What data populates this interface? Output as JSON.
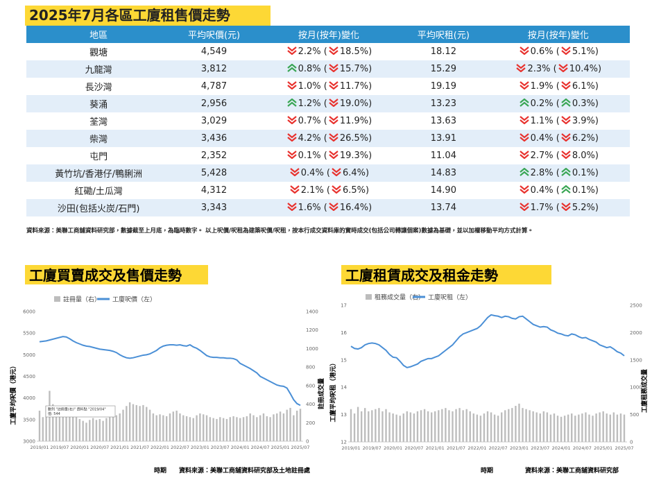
{
  "header": {
    "title": "2025年7月各區工廈租售價走勢"
  },
  "table": {
    "columns": [
      "地區",
      "平均呎價(元)",
      "按月(按年)變化",
      "平均呎租(元)",
      "按月(按年)變化"
    ],
    "rows": [
      [
        "觀塘",
        "4,549",
        {
          "arrows": [
            "down",
            "down"
          ],
          "texts": [
            "2.2% (",
            "18.5%)"
          ]
        },
        "18.12",
        {
          "arrows": [
            "down",
            "down"
          ],
          "texts": [
            "0.6% (",
            "5.1%)"
          ]
        }
      ],
      [
        "九龍灣",
        "3,812",
        {
          "arrows": [
            "up",
            "down"
          ],
          "texts": [
            "0.8% (",
            "15.7%)"
          ]
        },
        "15.29",
        {
          "arrows": [
            "down",
            "down"
          ],
          "texts": [
            "2.3% (",
            "10.4%)"
          ]
        }
      ],
      [
        "長沙灣",
        "4,787",
        {
          "arrows": [
            "down",
            "down"
          ],
          "texts": [
            "1.0% (",
            "11.7%)"
          ]
        },
        "19.19",
        {
          "arrows": [
            "down",
            "down"
          ],
          "texts": [
            "1.9% (",
            "6.1%)"
          ]
        }
      ],
      [
        "葵涌",
        "2,956",
        {
          "arrows": [
            "up",
            "down"
          ],
          "texts": [
            "1.2% (",
            "19.0%)"
          ]
        },
        "13.23",
        {
          "arrows": [
            "up",
            "up"
          ],
          "texts": [
            "0.2% (",
            "0.3%)"
          ]
        }
      ],
      [
        "荃灣",
        "3,029",
        {
          "arrows": [
            "down",
            "down"
          ],
          "texts": [
            "0.7% (",
            "11.9%)"
          ]
        },
        "13.63",
        {
          "arrows": [
            "down",
            "down"
          ],
          "texts": [
            "1.1% (",
            "3.9%)"
          ]
        }
      ],
      [
        "柴灣",
        "3,436",
        {
          "arrows": [
            "down",
            "down"
          ],
          "texts": [
            "4.2% (",
            "26.5%)"
          ]
        },
        "13.91",
        {
          "arrows": [
            "down",
            "down"
          ],
          "texts": [
            "0.4% (",
            "6.2%)"
          ]
        }
      ],
      [
        "屯門",
        "2,352",
        {
          "arrows": [
            "down",
            "down"
          ],
          "texts": [
            "0.1% (",
            "19.3%)"
          ]
        },
        "11.04",
        {
          "arrows": [
            "down",
            "down"
          ],
          "texts": [
            "2.7% (",
            "8.0%)"
          ]
        }
      ],
      [
        "黃竹坑/香港仔/鴨脷洲",
        "5,428",
        {
          "arrows": [
            "down",
            "down"
          ],
          "texts": [
            "0.4% (",
            "6.4%)"
          ]
        },
        "14.83",
        {
          "arrows": [
            "up",
            "up"
          ],
          "texts": [
            "2.8% (",
            "0.1%)"
          ]
        }
      ],
      [
        "紅磡/土瓜灣",
        "4,312",
        {
          "arrows": [
            "down",
            "down"
          ],
          "texts": [
            "2.1% (",
            "6.5%)"
          ]
        },
        "14.90",
        {
          "arrows": [
            "down",
            "up"
          ],
          "texts": [
            "0.4% (",
            "0.1%)"
          ]
        }
      ],
      [
        "沙田(包括火炭/石門)",
        "3,343",
        {
          "arrows": [
            "down",
            "down"
          ],
          "texts": [
            "1.6% (",
            "16.4%)"
          ]
        },
        "13.74",
        {
          "arrows": [
            "down",
            "down"
          ],
          "texts": [
            "1.7% (",
            "5.2%)"
          ]
        }
      ]
    ]
  },
  "source_note": "資料來源：美聯工商舖資料研究部，數據截至上月底，為臨時數字。 以上呎價/呎租為建築呎價/呎租，按本行成交資料庫的實時成交(包括公司轉讓個案)數據為基礎，並以加權移動平均方式計算。",
  "chart_data": [
    {
      "type": "combo",
      "title": "工廈買賣成交及售價走勢",
      "categories": [
        "2019/01",
        null,
        null,
        null,
        null,
        null,
        "2019/07",
        null,
        null,
        null,
        null,
        null,
        "2020/01",
        null,
        null,
        null,
        null,
        null,
        "2020/07",
        null,
        null,
        null,
        null,
        null,
        "2021/01",
        null,
        null,
        null,
        null,
        null,
        "2021/07",
        null,
        null,
        null,
        null,
        null,
        "2022/01",
        null,
        null,
        null,
        null,
        null,
        "2022/07",
        null,
        null,
        null,
        null,
        null,
        "2023/01",
        null,
        null,
        null,
        null,
        null,
        "2023/07",
        null,
        null,
        null,
        null,
        null,
        "2024/01",
        null,
        null,
        null,
        null,
        null,
        "2024/07",
        null,
        null,
        null,
        null,
        null,
        "2025/01",
        null,
        null,
        null,
        null,
        null,
        "2025/07"
      ],
      "series": [
        {
          "name": "註冊量（右）",
          "type": "bar",
          "axis": "y2",
          "color": "#bdbdbd",
          "values": [
            330,
            260,
            380,
            544,
            400,
            380,
            320,
            300,
            360,
            340,
            300,
            260,
            240,
            220,
            200,
            230,
            250,
            230,
            240,
            220,
            250,
            260,
            270,
            280,
            300,
            340,
            380,
            420,
            400,
            390,
            380,
            390,
            370,
            340,
            300,
            280,
            290,
            280,
            270,
            300,
            320,
            330,
            300,
            280,
            270,
            260,
            250,
            280,
            300,
            290,
            280,
            260,
            250,
            240,
            260,
            250,
            240,
            260,
            270,
            260,
            250,
            260,
            270,
            300,
            280,
            260,
            280,
            300,
            270,
            260,
            290,
            300,
            320,
            300,
            340,
            360,
            280,
            330,
            350
          ]
        },
        {
          "name": "工廈呎價（左）",
          "type": "line",
          "color": "#4a8fd6",
          "values": [
            5300,
            5310,
            5320,
            5340,
            5360,
            5380,
            5400,
            5420,
            5410,
            5370,
            5320,
            5280,
            5250,
            5220,
            5200,
            5190,
            5170,
            5150,
            5130,
            5120,
            5110,
            5100,
            5080,
            5050,
            5000,
            4960,
            4930,
            4920,
            4930,
            4950,
            4970,
            4990,
            5000,
            5020,
            5060,
            5100,
            5160,
            5200,
            5220,
            5230,
            5230,
            5220,
            5230,
            5210,
            5200,
            5230,
            5180,
            5150,
            5100,
            5040,
            4980,
            4950,
            4940,
            4940,
            4930,
            4930,
            4920,
            4920,
            4910,
            4880,
            4800,
            4760,
            4720,
            4680,
            4630,
            4580,
            4500,
            4460,
            4420,
            4380,
            4340,
            4300,
            4280,
            4270,
            4230,
            4100,
            3960,
            3870,
            3830
          ]
        }
      ],
      "ylim": [
        3000,
        6000
      ],
      "yticks": [
        3000,
        3500,
        4000,
        4500,
        5000,
        5500,
        6000
      ],
      "y2lim": [
        0,
        1400
      ],
      "y2ticks": [
        0,
        200,
        400,
        600,
        800,
        1000,
        1200,
        1400
      ],
      "ylabel": "工廈平均呎價（港元）",
      "y2label": "註冊成交量",
      "xlabel": "時期",
      "source": "資料來源：美聯工商舖資料研究部及土地註冊處",
      "annotation": [
        "數列 \"註冊量(右)\" 資料點 \"2019/04\"",
        "值: 544"
      ]
    },
    {
      "type": "combo",
      "title": "工廈租賃成交及租金走勢",
      "categories": [
        "2019/01",
        null,
        null,
        null,
        null,
        null,
        "2019/07",
        null,
        null,
        null,
        null,
        null,
        "2020/01",
        null,
        null,
        null,
        null,
        null,
        "2020/07",
        null,
        null,
        null,
        null,
        null,
        "2021/01",
        null,
        null,
        null,
        null,
        null,
        "2021/07",
        null,
        null,
        null,
        null,
        null,
        "2022/01",
        null,
        null,
        null,
        null,
        null,
        "2022/07",
        null,
        null,
        null,
        null,
        null,
        "2023/01",
        null,
        null,
        null,
        null,
        null,
        "2023/07",
        null,
        null,
        null,
        null,
        null,
        "2024/01",
        null,
        null,
        null,
        null,
        null,
        "2024/07",
        null,
        null,
        null,
        null,
        null,
        "2025/01",
        null,
        null,
        null,
        null,
        null,
        "2025/07"
      ],
      "series": [
        {
          "name": "租務成交量（右）",
          "type": "bar",
          "axis": "y2",
          "color": "#bdbdbd",
          "values": [
            600,
            520,
            640,
            560,
            620,
            560,
            580,
            600,
            620,
            560,
            600,
            540,
            520,
            500,
            480,
            520,
            560,
            540,
            520,
            560,
            580,
            600,
            560,
            540,
            560,
            580,
            600,
            620,
            580,
            560,
            600,
            620,
            580,
            600,
            560,
            520,
            500,
            480,
            520,
            560,
            540,
            500,
            480,
            540,
            580,
            600,
            620,
            660,
            700,
            620,
            600,
            580,
            560,
            540,
            520,
            560,
            540,
            500,
            520,
            480,
            460,
            480,
            500,
            520,
            480,
            500,
            520,
            540,
            500,
            480,
            520,
            540,
            560,
            520,
            500,
            540,
            500,
            520,
            500
          ]
        },
        {
          "name": "工廈呎租（左）",
          "type": "line",
          "color": "#4a8fd6",
          "values": [
            15.5,
            15.42,
            15.4,
            15.45,
            15.55,
            15.6,
            15.62,
            15.6,
            15.55,
            15.45,
            15.35,
            15.2,
            15.1,
            15.08,
            14.95,
            14.8,
            14.72,
            14.75,
            14.8,
            14.85,
            14.95,
            15.0,
            15.05,
            15.05,
            15.1,
            15.15,
            15.25,
            15.35,
            15.45,
            15.55,
            15.7,
            15.85,
            15.95,
            16.0,
            16.05,
            16.1,
            16.15,
            16.25,
            16.4,
            16.55,
            16.65,
            16.62,
            16.6,
            16.55,
            16.6,
            16.58,
            16.52,
            16.5,
            16.58,
            16.6,
            16.5,
            16.4,
            16.3,
            16.25,
            16.2,
            16.22,
            16.2,
            16.1,
            16.05,
            15.98,
            15.95,
            15.9,
            15.88,
            15.95,
            15.92,
            15.85,
            15.8,
            15.82,
            15.75,
            15.7,
            15.65,
            15.55,
            15.5,
            15.45,
            15.48,
            15.4,
            15.3,
            15.25,
            15.15
          ]
        }
      ],
      "ylim": [
        12,
        17
      ],
      "yticks": [
        12,
        13,
        14,
        15,
        16,
        17
      ],
      "y2lim": [
        0,
        2500
      ],
      "y2ticks": [
        0,
        500,
        1000,
        1500,
        2000,
        2500
      ],
      "ylabel": "工廈平均呎租（港元）",
      "y2label": "工廈租務成交量",
      "xlabel": "時期",
      "source": "資料來源：美聯工商舖資料研究部"
    }
  ]
}
